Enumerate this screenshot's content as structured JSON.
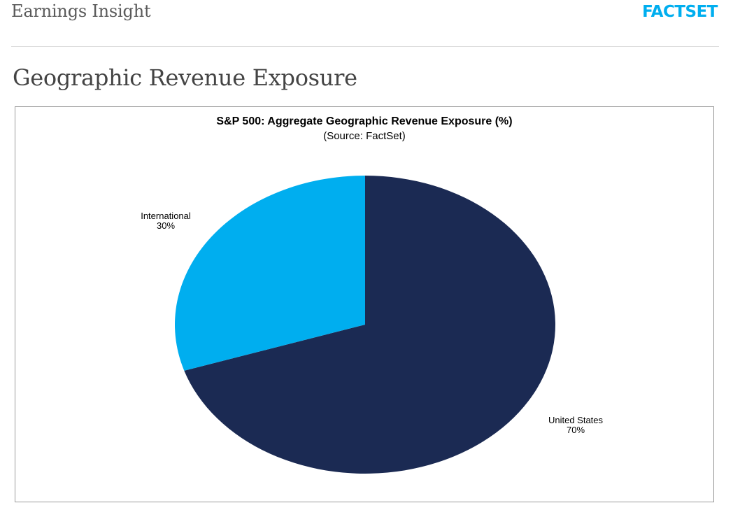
{
  "header": {
    "title": "Earnings Insight",
    "logo_text": "FACTSET"
  },
  "page_title": "Geographic Revenue Exposure",
  "chart_data": {
    "type": "pie",
    "title": "S&P 500: Aggregate Geographic Revenue Exposure (%)",
    "subtitle": "(Source: FactSet)",
    "slices": [
      {
        "label": "United States",
        "value": 70,
        "value_label": "70%",
        "color": "#1b2a53"
      },
      {
        "label": "International",
        "value": 30,
        "value_label": "30%",
        "color": "#00aeef"
      }
    ],
    "start": "12 o'clock",
    "direction": "clockwise",
    "legend": "none"
  },
  "colors": {
    "brand": "#00aeef",
    "header_text": "#5a5a5a",
    "title_text": "#444444"
  }
}
